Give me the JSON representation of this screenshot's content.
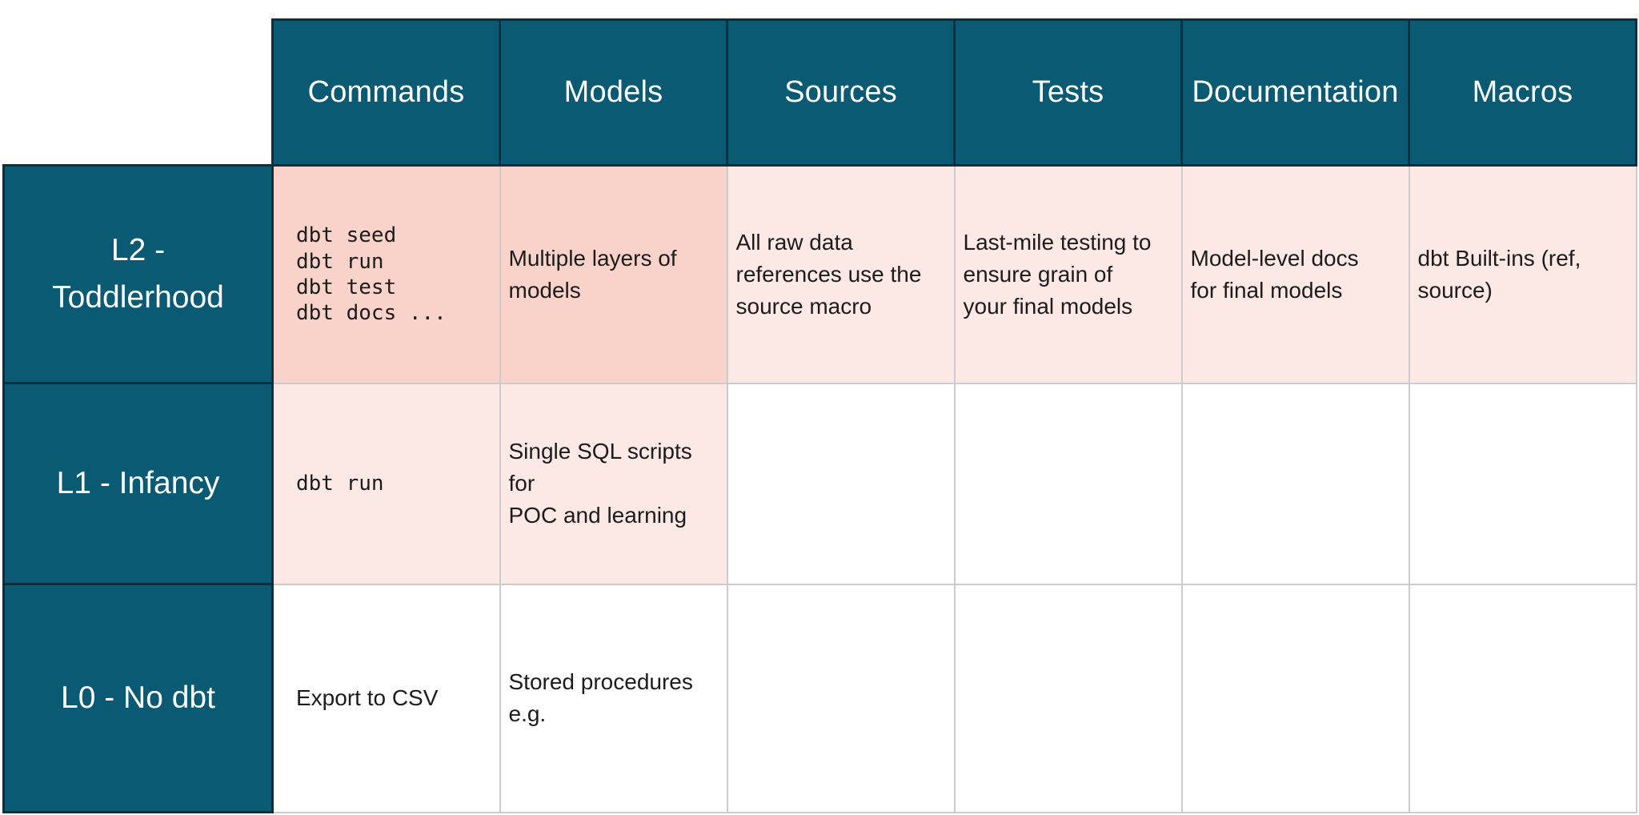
{
  "colors": {
    "teal": "#0b5a74",
    "teal_border": "#0d2e3a",
    "salmon": "#f9d3c9",
    "pink": "#fce9e5",
    "grid_border": "#cccccc",
    "header_text": "#fdfdfd",
    "body_text": "#1c1c1c"
  },
  "table": {
    "column_headers": [
      "Commands",
      "Models",
      "Sources",
      "Tests",
      "Documentation",
      "Macros"
    ],
    "rows": [
      {
        "label": "L2 -\nToddlerhood",
        "cells": [
          {
            "text": "dbt seed\ndbt run\ndbt test\ndbt docs ...",
            "bg": "salmon",
            "mono": true
          },
          {
            "text": "Multiple layers of\nmodels",
            "bg": "salmon"
          },
          {
            "text": "All raw data\nreferences use the\nsource macro",
            "bg": "pink"
          },
          {
            "text": "Last-mile testing to\nensure grain of\nyour final models",
            "bg": "pink"
          },
          {
            "text": "Model-level docs\nfor final models",
            "bg": "pink"
          },
          {
            "text": "dbt Built-ins (ref,\nsource)",
            "bg": "pink"
          }
        ]
      },
      {
        "label": "L1 - Infancy",
        "cells": [
          {
            "text": "dbt run",
            "bg": "pink",
            "mono": true
          },
          {
            "text": "Single SQL scripts for\nPOC and learning",
            "bg": "pink"
          },
          {
            "text": "",
            "bg": "white"
          },
          {
            "text": "",
            "bg": "white"
          },
          {
            "text": "",
            "bg": "white"
          },
          {
            "text": "",
            "bg": "white"
          }
        ]
      },
      {
        "label": "L0 - No dbt",
        "cells": [
          {
            "text": "Export to CSV",
            "bg": "white"
          },
          {
            "text": "Stored procedures\ne.g.",
            "bg": "white"
          },
          {
            "text": "",
            "bg": "white"
          },
          {
            "text": "",
            "bg": "white"
          },
          {
            "text": "",
            "bg": "white"
          },
          {
            "text": "",
            "bg": "white"
          }
        ]
      }
    ]
  }
}
